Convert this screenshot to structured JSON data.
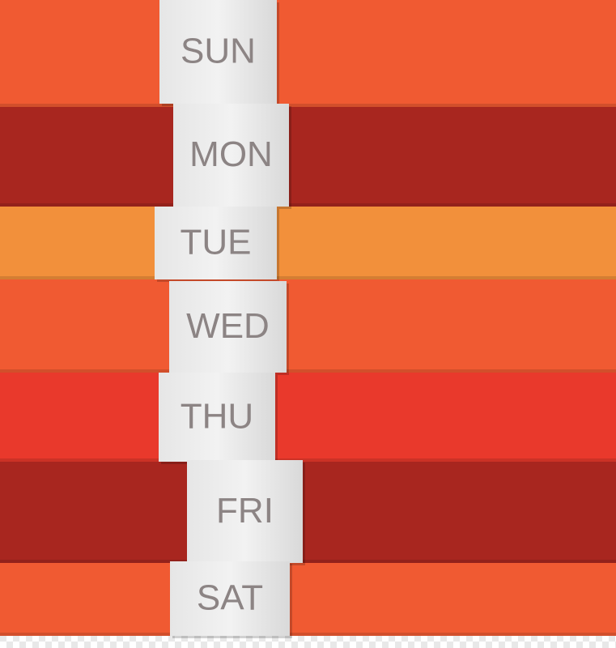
{
  "days": [
    "SUN",
    "MON",
    "TUE",
    "WED",
    "THU",
    "FRI",
    "SAT"
  ]
}
